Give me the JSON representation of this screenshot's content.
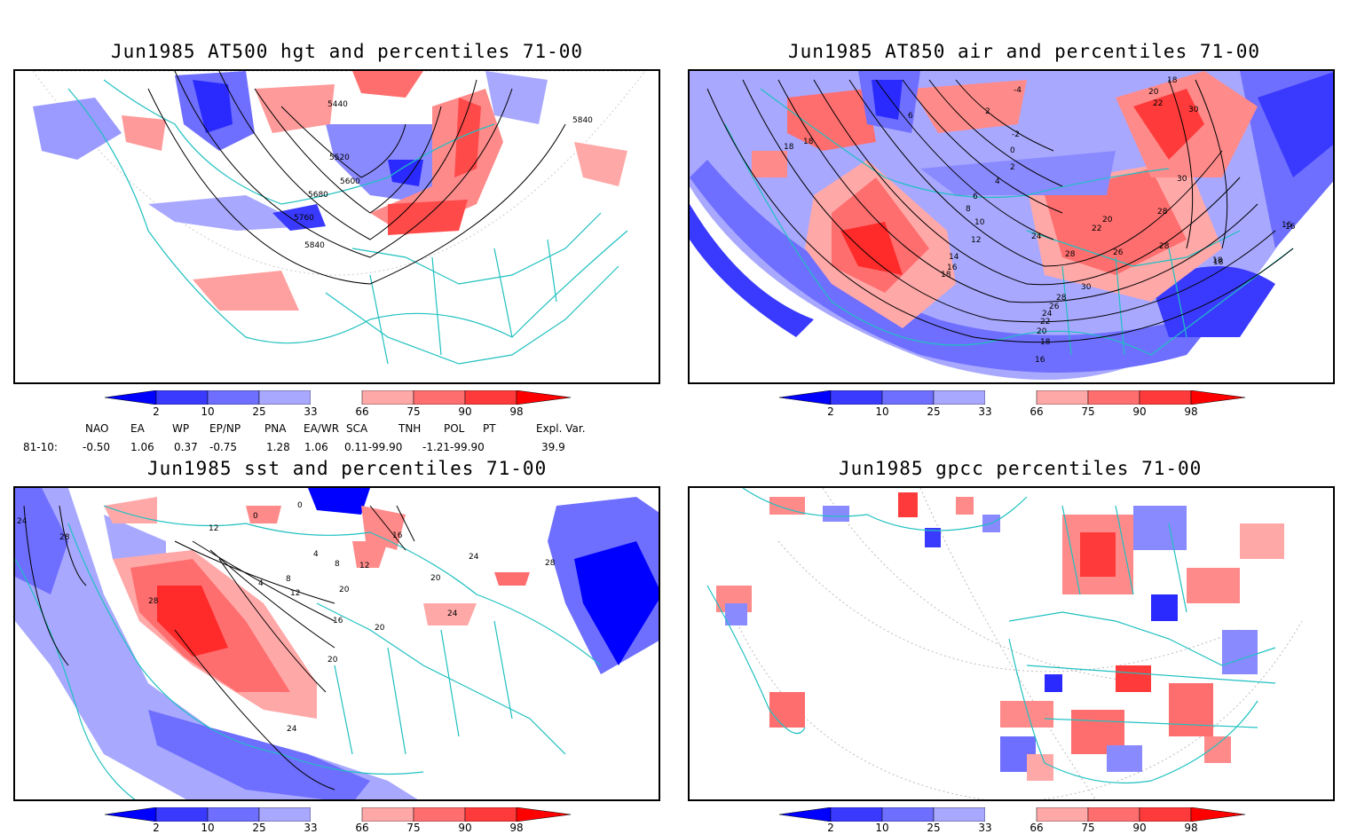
{
  "panels": [
    {
      "title": "Jun1985 AT500 hgt and percentiles 71-00",
      "contour_labels": [
        "5440",
        "5520",
        "5600",
        "5680",
        "5760",
        "5840",
        "5840"
      ]
    },
    {
      "title": "Jun1985 AT850 air and percentiles 71-00",
      "contour_labels": [
        "-4",
        "2",
        "-2",
        "0",
        "2",
        "4",
        "6",
        "6",
        "8",
        "10",
        "12",
        "14",
        "16",
        "18",
        "18",
        "18",
        "20",
        "22",
        "24",
        "26",
        "28",
        "28",
        "30",
        "30",
        "16",
        "18",
        "16",
        "18",
        "20",
        "22",
        "24",
        "26",
        "28",
        "18",
        "20",
        "22",
        "28",
        "30",
        "16",
        "18"
      ]
    },
    {
      "title": "Jun1985 sst and percentiles 71-00",
      "contour_labels": [
        "24",
        "28",
        "28",
        "12",
        "0",
        "4",
        "8",
        "12",
        "16",
        "20",
        "24",
        "20",
        "20",
        "24",
        "28",
        "0",
        "4",
        "8",
        "12",
        "16",
        "20",
        "24"
      ]
    },
    {
      "title": "Jun1985 gpcc percentiles 71-00",
      "contour_labels": []
    }
  ],
  "colorbar": {
    "labels": [
      "2",
      "10",
      "25",
      "33",
      "66",
      "75",
      "90",
      "98"
    ],
    "colors": [
      "#0000ff",
      "#3a3aff",
      "#6e6eff",
      "#a8a8ff",
      "#ffffff",
      "#ffa8a8",
      "#ff6e6e",
      "#ff3a3a",
      "#ff0000"
    ]
  },
  "indices": {
    "headers": [
      "NAO",
      "EA",
      "WP",
      "EP/NP",
      "PNA",
      "EA/WR",
      "SCA",
      "TNH",
      "POL",
      "PT",
      "Expl. Var."
    ],
    "row_label": "81-10:",
    "values": [
      "-0.50",
      "1.06",
      "0.37",
      "-0.75",
      "1.28",
      "1.06",
      "0.11-99.90",
      "-1.21-99.90",
      "39.9"
    ]
  },
  "colors": {
    "coast": "#20c0c0",
    "warm": "#ff6060",
    "cool": "#6060ff"
  }
}
